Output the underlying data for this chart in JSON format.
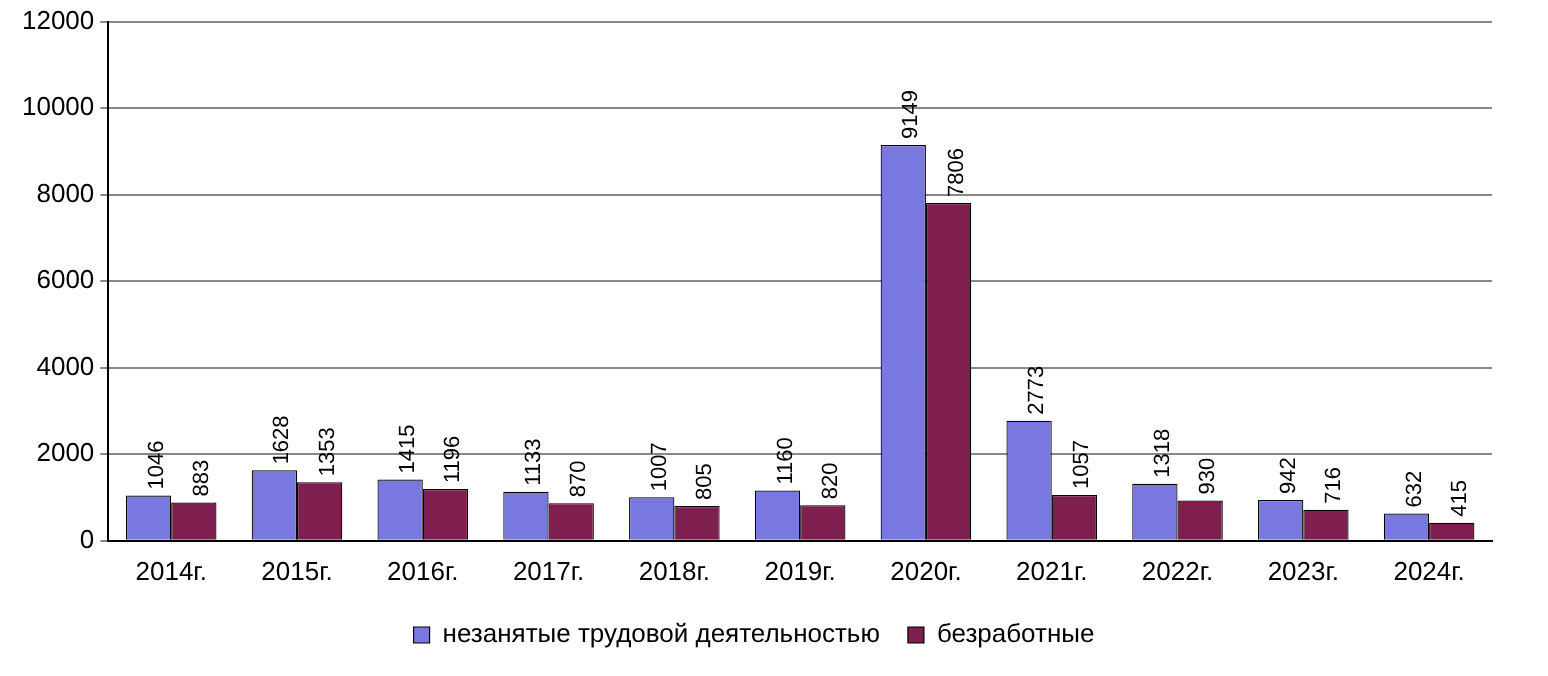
{
  "chart_data": {
    "type": "bar",
    "categories": [
      "2014г.",
      "2015г.",
      "2016г.",
      "2017г.",
      "2018г.",
      "2019г.",
      "2020г.",
      "2021г.",
      "2022г.",
      "2023г.",
      "2024г."
    ],
    "series": [
      {
        "name": "незанятые трудовой деятельностью",
        "color": "#7878e0",
        "values": [
          1046,
          1628,
          1415,
          1133,
          1007,
          1160,
          9149,
          2773,
          1318,
          942,
          632
        ]
      },
      {
        "name": "безработные",
        "color": "#7f1f4f",
        "values": [
          883,
          1353,
          1196,
          870,
          805,
          820,
          7806,
          1057,
          930,
          716,
          415
        ]
      }
    ],
    "ylim": [
      0,
      12000
    ],
    "yticks": [
      0,
      2000,
      4000,
      6000,
      8000,
      10000,
      12000
    ],
    "grid": "y",
    "legend": "bottom",
    "data_labels": true
  }
}
